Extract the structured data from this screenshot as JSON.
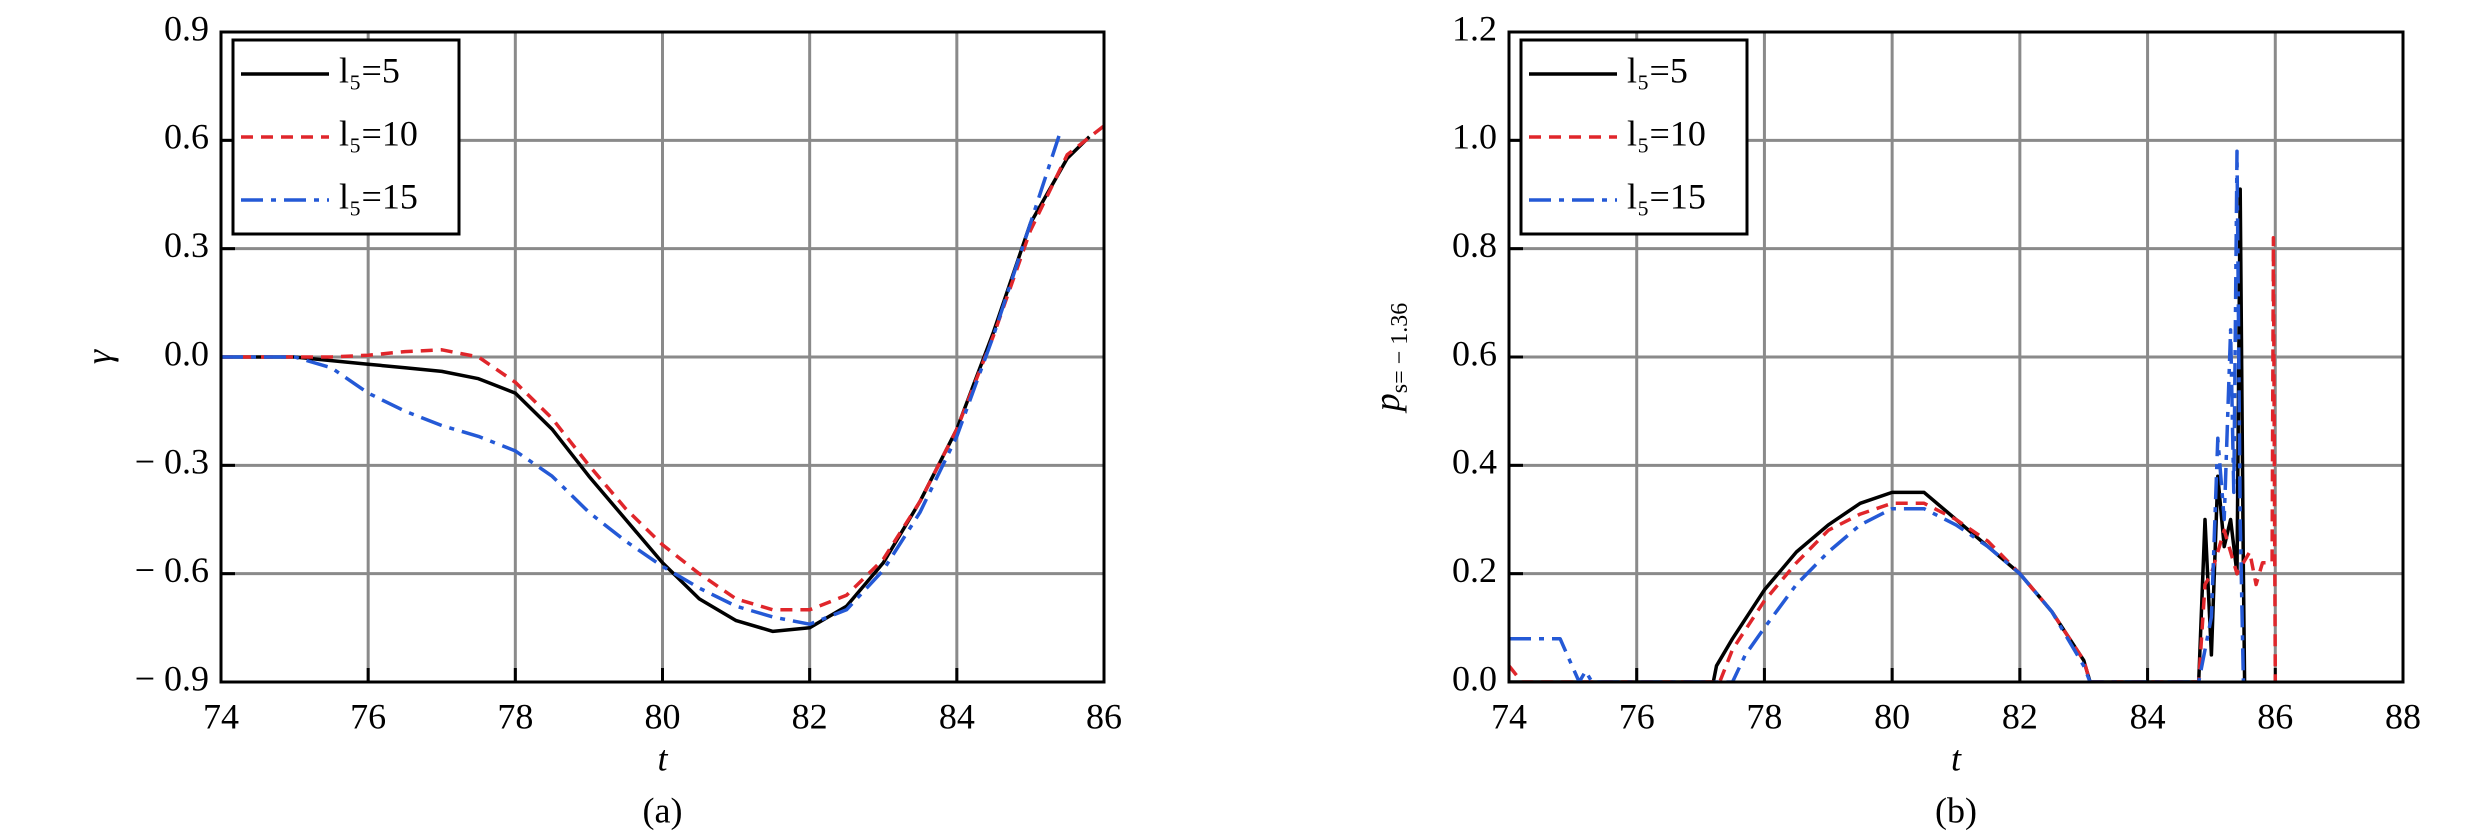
{
  "chart_data": [
    {
      "type": "line",
      "caption": "(a)",
      "xlabel": "t",
      "ylabel": {
        "main": "γ"
      },
      "xlim": [
        74,
        86
      ],
      "xticks": [
        74,
        76,
        78,
        80,
        82,
        84,
        86
      ],
      "ylim": [
        -0.9,
        0.9
      ],
      "yticks": [
        {
          "value": -0.9,
          "label": "− 0.9"
        },
        {
          "value": -0.6,
          "label": "− 0.6"
        },
        {
          "value": -0.3,
          "label": "− 0.3"
        },
        {
          "value": 0,
          "label": "0.0"
        },
        0.3,
        0.6,
        0.9
      ],
      "grid": true,
      "legend": "upper left",
      "series": [
        {
          "name": "l₅=5",
          "color": "#000000",
          "dash": "solid",
          "x": [
            74,
            75,
            75.5,
            76,
            76.5,
            77,
            77.5,
            78,
            78.5,
            79,
            79.5,
            80,
            80.5,
            81,
            81.5,
            82,
            82.5,
            83,
            83.5,
            84,
            84.5,
            85,
            85.5,
            85.8
          ],
          "values": [
            0,
            0,
            -0.01,
            -0.02,
            -0.03,
            -0.04,
            -0.06,
            -0.1,
            -0.2,
            -0.33,
            -0.45,
            -0.57,
            -0.67,
            -0.73,
            -0.76,
            -0.75,
            -0.69,
            -0.57,
            -0.4,
            -0.2,
            0.07,
            0.37,
            0.55,
            0.61
          ]
        },
        {
          "name": "l₅=10",
          "color": "#e0262b",
          "dash": "dashed",
          "x": [
            74,
            75,
            75.5,
            76,
            76.5,
            77,
            77.5,
            78,
            78.5,
            79,
            79.5,
            80,
            80.5,
            81,
            81.5,
            82,
            82.5,
            83,
            83.5,
            84,
            84.5,
            85,
            85.5,
            86
          ],
          "values": [
            0,
            0,
            0,
            0.005,
            0.015,
            0.02,
            0,
            -0.07,
            -0.17,
            -0.3,
            -0.42,
            -0.52,
            -0.6,
            -0.67,
            -0.7,
            -0.7,
            -0.66,
            -0.56,
            -0.4,
            -0.2,
            0.06,
            0.35,
            0.56,
            0.64
          ]
        },
        {
          "name": "l₅=15",
          "color": "#2459d6",
          "dash": "dashdot",
          "x": [
            74,
            75,
            75.5,
            76,
            76.5,
            77,
            77.5,
            78,
            78.5,
            79,
            79.5,
            80,
            80.5,
            81,
            81.5,
            82,
            82.5,
            83,
            83.5,
            84,
            84.5,
            85,
            85.4
          ],
          "values": [
            0,
            0,
            -0.03,
            -0.1,
            -0.15,
            -0.19,
            -0.22,
            -0.26,
            -0.33,
            -0.43,
            -0.51,
            -0.58,
            -0.64,
            -0.69,
            -0.72,
            -0.74,
            -0.7,
            -0.59,
            -0.43,
            -0.22,
            0.06,
            0.37,
            0.62
          ]
        }
      ]
    },
    {
      "type": "line",
      "caption": "(b)",
      "xlabel": "t",
      "ylabel": {
        "main": "p",
        "sub": "s= − 1.36"
      },
      "xlim": [
        74,
        88
      ],
      "xticks": [
        74,
        76,
        78,
        80,
        82,
        84,
        86,
        88
      ],
      "ylim": [
        0,
        1.2
      ],
      "yticks": [
        {
          "value": 0,
          "label": "0.0"
        },
        0.2,
        0.4,
        0.6,
        0.8,
        {
          "value": 1,
          "label": "1.0"
        },
        1.2
      ],
      "grid": true,
      "legend": "upper left",
      "series": [
        {
          "name": "l₅=5",
          "color": "#000000",
          "dash": "solid",
          "x": [
            74,
            77.2,
            77.25,
            77.5,
            78,
            78.5,
            79,
            79.5,
            80,
            80.5,
            81,
            81.5,
            82,
            82.5,
            83,
            83.1,
            84.8,
            84.9,
            85.0,
            85.1,
            85.2,
            85.3,
            85.4,
            85.45,
            85.5,
            85.52
          ],
          "values": [
            0,
            0,
            0.03,
            0.08,
            0.17,
            0.24,
            0.29,
            0.33,
            0.35,
            0.35,
            0.3,
            0.25,
            0.2,
            0.13,
            0.04,
            0,
            0,
            0.3,
            0.05,
            0.38,
            0.25,
            0.3,
            0.2,
            0.91,
            0.2,
            0
          ]
        },
        {
          "name": "l₅=10",
          "color": "#e0262b",
          "dash": "dashed",
          "x": [
            74,
            74.2,
            77.3,
            77.5,
            78,
            78.5,
            79,
            79.5,
            80,
            80.5,
            81,
            81.5,
            82,
            82.5,
            83,
            83.1,
            84.8,
            84.9,
            85.0,
            85.2,
            85.4,
            85.6,
            85.7,
            85.8,
            85.95,
            85.97,
            86.0
          ],
          "values": [
            0.03,
            0,
            0,
            0.06,
            0.15,
            0.22,
            0.28,
            0.31,
            0.33,
            0.33,
            0.3,
            0.26,
            0.2,
            0.13,
            0.04,
            0,
            0,
            0.18,
            0.2,
            0.28,
            0.2,
            0.24,
            0.18,
            0.22,
            0.22,
            0.82,
            0
          ]
        },
        {
          "name": "l₅=15",
          "color": "#2459d6",
          "dash": "dashdot",
          "x": [
            74,
            74.8,
            75.1,
            75.2,
            75.3,
            77.5,
            77.7,
            78,
            78.5,
            79,
            79.5,
            80,
            80.5,
            81,
            81.5,
            82,
            82.5,
            83,
            83.1,
            84.8,
            85.0,
            85.1,
            85.2,
            85.3,
            85.35,
            85.4,
            85.45,
            85.5
          ],
          "values": [
            0.08,
            0.08,
            0,
            0.02,
            0,
            0,
            0.05,
            0.1,
            0.18,
            0.24,
            0.29,
            0.32,
            0.32,
            0.29,
            0.25,
            0.2,
            0.13,
            0.03,
            0,
            0,
            0.12,
            0.45,
            0.3,
            0.65,
            0.35,
            0.98,
            0.3,
            0
          ]
        }
      ]
    }
  ]
}
